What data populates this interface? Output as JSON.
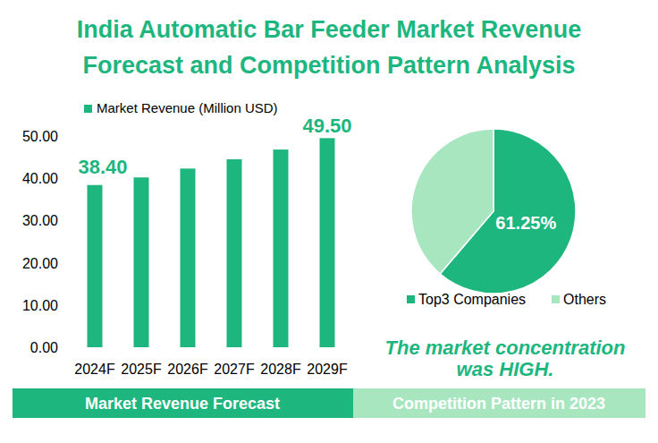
{
  "title": "India Automatic Bar Feeder Market Revenue Forecast and Competition Pattern Analysis",
  "chart_data": [
    {
      "type": "bar",
      "subtitle": "Market Revenue Forecast",
      "categories": [
        "2024F",
        "2025F",
        "2026F",
        "2027F",
        "2028F",
        "2029F"
      ],
      "series": [
        {
          "name": "Market Revenue (Million USD)",
          "color": "#1db67e",
          "values": [
            38.4,
            40.2,
            42.3,
            44.5,
            46.8,
            49.5
          ],
          "value_labels": [
            "38.40",
            null,
            null,
            null,
            null,
            "49.50"
          ]
        }
      ],
      "ylim": [
        0,
        50
      ],
      "yticks": [
        {
          "value": 0,
          "label": "0.00"
        },
        {
          "value": 10,
          "label": "10.00"
        },
        {
          "value": 20,
          "label": "20.00"
        },
        {
          "value": 30,
          "label": "30.00"
        },
        {
          "value": 40,
          "label": "40.00"
        },
        {
          "value": 50,
          "label": "50.00"
        }
      ],
      "grid": false,
      "data_labels": true,
      "legend": "top"
    },
    {
      "type": "pie",
      "subtitle": "Competition Pattern in 2023",
      "categories": [
        "Top3 Companies",
        "Others"
      ],
      "values": [
        61.25,
        38.75
      ],
      "value_labels": [
        "61.25%",
        null
      ],
      "colors": [
        "#1db67e",
        "#a8e6c0"
      ],
      "data_labels": true,
      "legend": "bottom",
      "annotations": [
        "The market concentration was HIGH."
      ]
    }
  ]
}
